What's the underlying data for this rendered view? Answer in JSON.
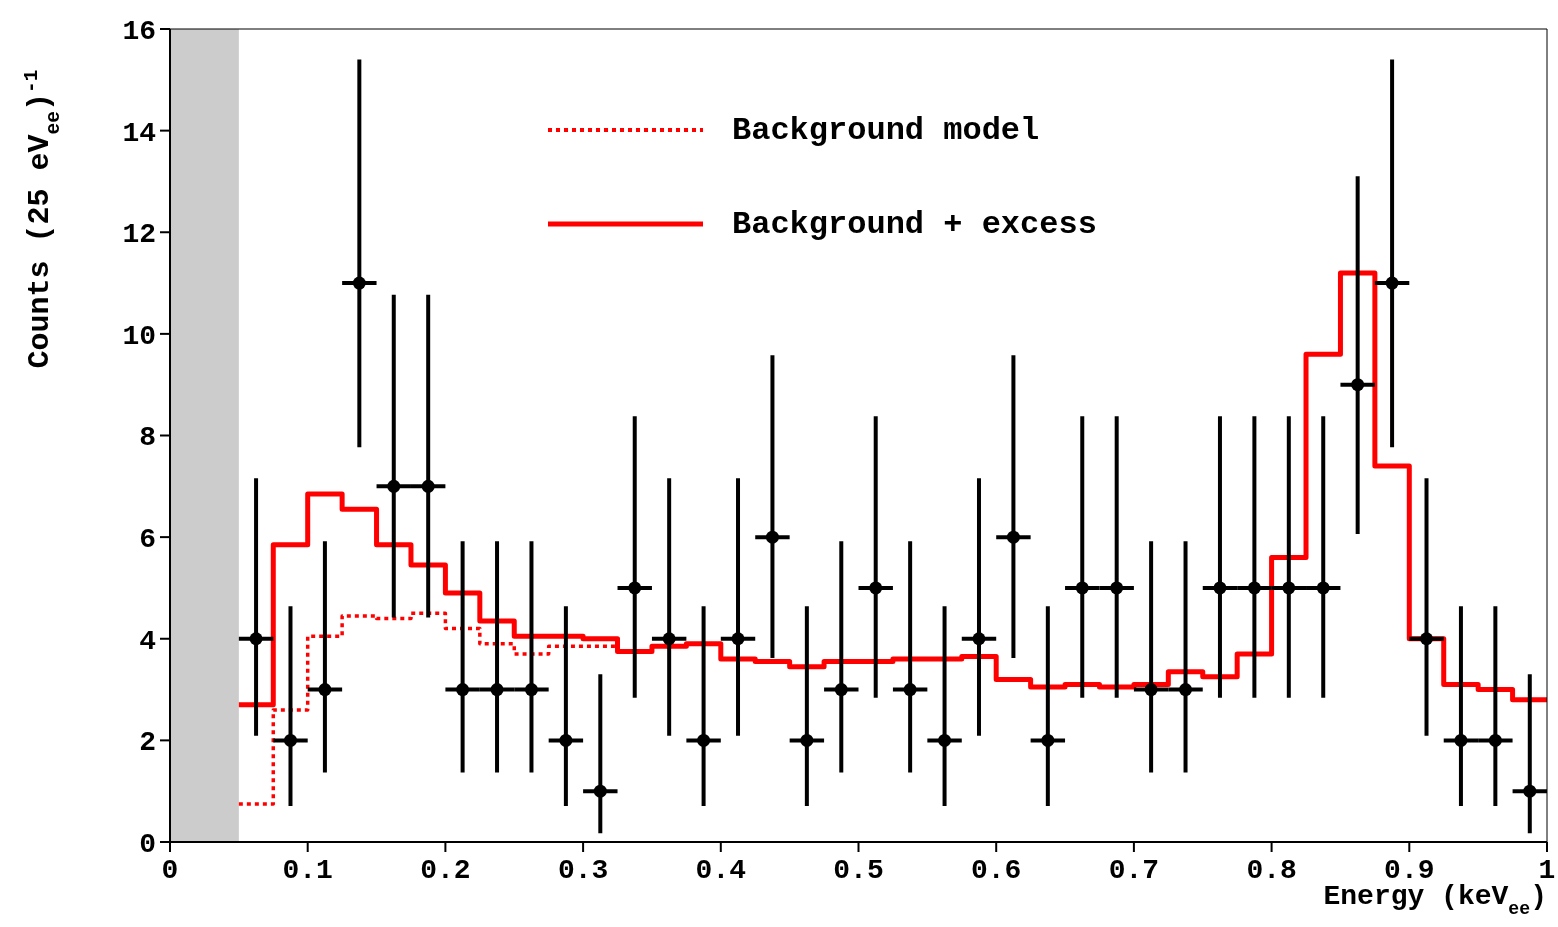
{
  "chart_data": {
    "type": "scatter",
    "xlabel": "Energy (keV$_{ee}$)",
    "ylabel": "Counts  (25 eV$_{ee}$)$^{-1}$",
    "xlim": [
      0,
      1
    ],
    "xticks": [
      0,
      0.1,
      0.2,
      0.3,
      0.4,
      0.5,
      0.6,
      0.7,
      0.8,
      0.9,
      1
    ],
    "ylim": [
      0,
      16
    ],
    "yticks": [
      0,
      2,
      4,
      6,
      8,
      10,
      12,
      14,
      16
    ],
    "legend": "top",
    "bands": [
      {
        "axis": "x",
        "from": 0,
        "to": 0.05,
        "color": "#cccccc"
      }
    ],
    "series": [
      {
        "name": "Background model",
        "type": "step",
        "color": "#ff0000",
        "line_style": "dotted",
        "x": [
          0.05,
          0.075,
          0.1,
          0.125,
          0.15,
          0.175,
          0.2,
          0.225,
          0.25,
          0.275,
          0.3,
          0.325,
          0.35
        ],
        "values": [
          0.75,
          2.6,
          4.05,
          4.45,
          4.4,
          4.5,
          4.2,
          3.9,
          3.7,
          3.85,
          3.85,
          3.75,
          3.75
        ]
      },
      {
        "name": "Background + excess",
        "type": "step",
        "color": "#ff0000",
        "line_style": "solid",
        "x": [
          0.05,
          0.075,
          0.1,
          0.125,
          0.15,
          0.175,
          0.2,
          0.225,
          0.25,
          0.275,
          0.3,
          0.325,
          0.35,
          0.375,
          0.4,
          0.425,
          0.45,
          0.475,
          0.5,
          0.525,
          0.55,
          0.575,
          0.6,
          0.625,
          0.65,
          0.675,
          0.7,
          0.725,
          0.75,
          0.775,
          0.8,
          0.825,
          0.85,
          0.875,
          0.9,
          0.925,
          0.95,
          0.975,
          1.0
        ],
        "values": [
          2.7,
          5.85,
          6.85,
          6.55,
          5.85,
          5.45,
          4.9,
          4.35,
          4.05,
          4.05,
          4.0,
          3.75,
          3.85,
          3.9,
          3.6,
          3.55,
          3.45,
          3.55,
          3.55,
          3.6,
          3.6,
          3.65,
          3.2,
          3.05,
          3.1,
          3.05,
          3.1,
          3.35,
          3.25,
          3.7,
          5.6,
          9.6,
          11.2,
          7.4,
          4.0,
          3.1,
          3.0,
          2.8,
          2.8
        ]
      },
      {
        "marker": "circle",
        "color": "#000000",
        "x": [
          0.0625,
          0.0875,
          0.1125,
          0.1375,
          0.1625,
          0.1875,
          0.2125,
          0.2375,
          0.2625,
          0.2875,
          0.3125,
          0.3375,
          0.3625,
          0.3875,
          0.4125,
          0.4375,
          0.4625,
          0.4875,
          0.5125,
          0.5375,
          0.5625,
          0.5875,
          0.6125,
          0.6375,
          0.6625,
          0.6875,
          0.7125,
          0.7375,
          0.7625,
          0.7875,
          0.8125,
          0.8375,
          0.8625,
          0.8875,
          0.9125,
          0.9375,
          0.9625,
          0.9875
        ],
        "values": [
          4,
          2,
          3,
          11,
          7,
          7,
          3,
          3,
          3,
          2,
          1,
          5,
          4,
          2,
          4,
          6,
          2,
          3,
          5,
          3,
          2,
          4,
          6,
          2,
          5,
          5,
          3,
          3,
          5,
          5,
          5,
          5,
          9,
          11,
          4,
          2,
          2,
          1
        ],
        "errors": [
          [
            2.09,
            7.16
          ],
          [
            0.71,
            4.64
          ],
          [
            1.37,
            5.92
          ],
          [
            7.77,
            15.4
          ],
          [
            4.42,
            10.77
          ],
          [
            4.42,
            10.77
          ],
          [
            1.37,
            5.92
          ],
          [
            1.37,
            5.92
          ],
          [
            1.37,
            5.92
          ],
          [
            0.71,
            4.64
          ],
          [
            0.17,
            3.3
          ],
          [
            2.84,
            8.38
          ],
          [
            2.09,
            7.16
          ],
          [
            0.71,
            4.64
          ],
          [
            2.09,
            7.16
          ],
          [
            3.62,
            9.58
          ],
          [
            0.71,
            4.64
          ],
          [
            1.37,
            5.92
          ],
          [
            2.84,
            8.38
          ],
          [
            1.37,
            5.92
          ],
          [
            0.71,
            4.64
          ],
          [
            2.09,
            7.16
          ],
          [
            3.62,
            9.58
          ],
          [
            0.71,
            4.64
          ],
          [
            2.84,
            8.38
          ],
          [
            2.84,
            8.38
          ],
          [
            1.37,
            5.92
          ],
          [
            1.37,
            5.92
          ],
          [
            2.84,
            8.38
          ],
          [
            2.84,
            8.38
          ],
          [
            2.84,
            8.38
          ],
          [
            2.84,
            8.38
          ],
          [
            6.06,
            13.1
          ],
          [
            7.77,
            15.4
          ],
          [
            2.09,
            7.16
          ],
          [
            0.71,
            4.64
          ],
          [
            0.71,
            4.64
          ],
          [
            0.17,
            3.3
          ]
        ],
        "xerrors": [
          0.0125,
          0.0125,
          0.0125,
          0.0125,
          0.0125,
          0.0125,
          0.0125,
          0.0125,
          0.0125,
          0.0125,
          0.0125,
          0.0125,
          0.0125,
          0.0125,
          0.0125,
          0.0125,
          0.0125,
          0.0125,
          0.0125,
          0.0125,
          0.0125,
          0.0125,
          0.0125,
          0.0125,
          0.0125,
          0.0125,
          0.0125,
          0.0125,
          0.0125,
          0.0125,
          0.0125,
          0.0125,
          0.0125,
          0.0125,
          0.0125,
          0.0125,
          0.0125,
          0.0125
        ]
      }
    ]
  }
}
